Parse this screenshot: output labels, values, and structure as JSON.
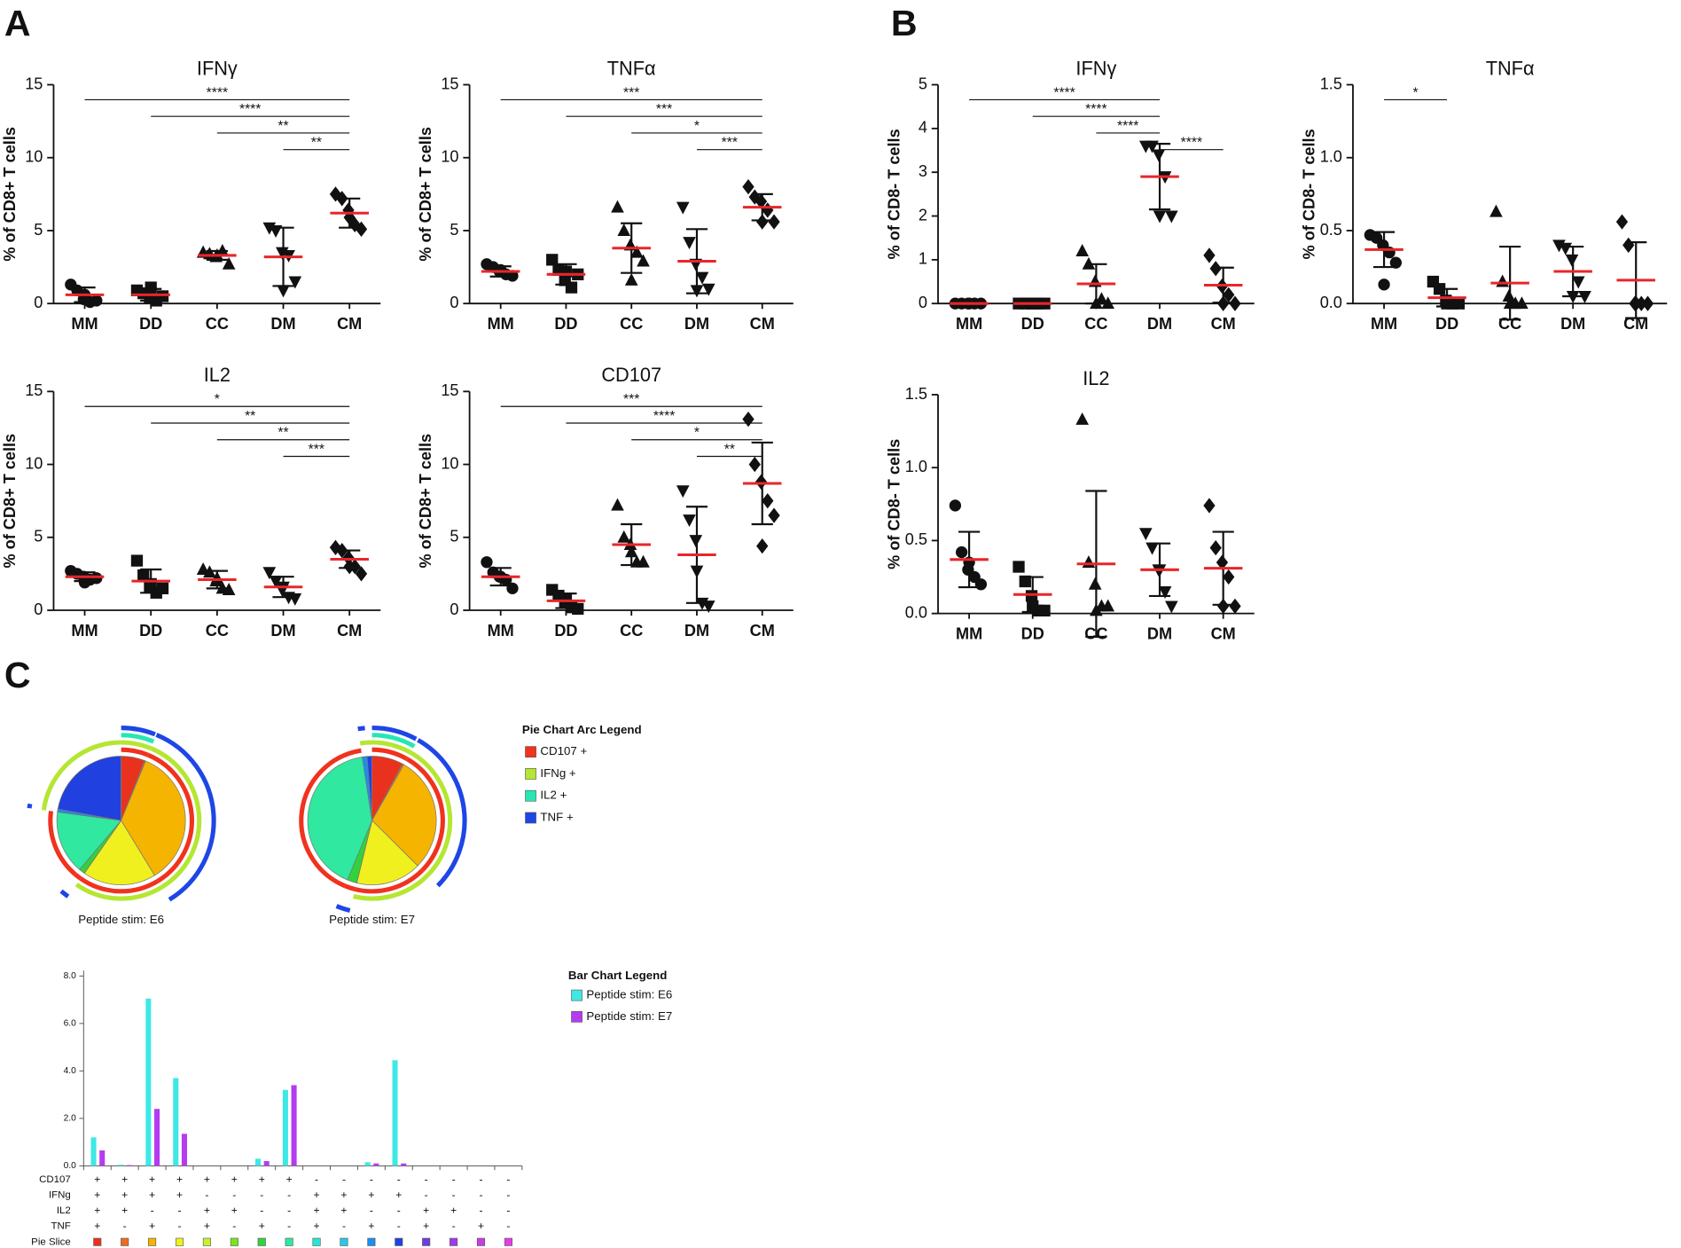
{
  "panel_labels": [
    "A",
    "B",
    "C"
  ],
  "chart_data": [
    {
      "type": "dot",
      "title": "IFNγ",
      "ylabel": "% of CD8+ T cells",
      "categories": [
        "MM",
        "DD",
        "CC",
        "DM",
        "CM"
      ],
      "markers": [
        "circle",
        "square",
        "triangle-up",
        "triangle-down",
        "diamond"
      ],
      "mean_color": "#e8262a",
      "points": [
        [
          1.3,
          0.9,
          0.3,
          0.1,
          0.2,
          0.6
        ],
        [
          0.9,
          0.7,
          0.4,
          0.2,
          0.5,
          1.1
        ],
        [
          3.5,
          3.4,
          3.2,
          3.6,
          2.7,
          3.3
        ],
        [
          5.2,
          5.0,
          3.5,
          3.3,
          1.5,
          0.9
        ],
        [
          7.5,
          7.2,
          6.4,
          5.4,
          5.1,
          5.9
        ]
      ],
      "means": [
        0.6,
        0.6,
        3.3,
        3.2,
        6.2
      ],
      "sds": [
        0.5,
        0.4,
        0.3,
        2.0,
        1.0
      ],
      "ylim": [
        0,
        15
      ],
      "yticks": [
        0,
        5,
        10,
        15
      ],
      "annotations": [
        {
          "label": "****",
          "span": [
            "MM",
            "CM"
          ]
        },
        {
          "label": "****",
          "span": [
            "DD",
            "CM"
          ]
        },
        {
          "label": "**",
          "span": [
            "CC",
            "CM"
          ]
        },
        {
          "label": "**",
          "span": [
            "DM",
            "CM"
          ]
        }
      ]
    },
    {
      "type": "dot",
      "title": "TNFα",
      "ylabel": "% of CD8+ T cells",
      "categories": [
        "MM",
        "DD",
        "CC",
        "DM",
        "CM"
      ],
      "markers": [
        "circle",
        "square",
        "triangle-up",
        "triangle-down",
        "diamond"
      ],
      "mean_color": "#e8262a",
      "points": [
        [
          2.7,
          2.5,
          2.2,
          2.0,
          1.9,
          2.3
        ],
        [
          3.0,
          2.3,
          1.6,
          1.1,
          2.0,
          2.2
        ],
        [
          6.6,
          5.0,
          4.0,
          3.5,
          2.9,
          1.6
        ],
        [
          6.6,
          4.2,
          2.7,
          1.8,
          1.0,
          0.9
        ],
        [
          8.0,
          7.3,
          7.0,
          6.4,
          5.6,
          5.6
        ]
      ],
      "means": [
        2.2,
        2.0,
        3.8,
        2.9,
        6.6
      ],
      "sds": [
        0.35,
        0.7,
        1.7,
        2.2,
        0.9
      ],
      "ylim": [
        0,
        15
      ],
      "yticks": [
        0,
        5,
        10,
        15
      ],
      "annotations": [
        {
          "label": "***",
          "span": [
            "MM",
            "CM"
          ]
        },
        {
          "label": "***",
          "span": [
            "DD",
            "CM"
          ]
        },
        {
          "label": "*",
          "span": [
            "CC",
            "CM"
          ]
        },
        {
          "label": "***",
          "span": [
            "DM",
            "CM"
          ]
        }
      ]
    },
    {
      "type": "dot",
      "title": "IL2",
      "ylabel": "% of CD8+ T cells",
      "categories": [
        "MM",
        "DD",
        "CC",
        "DM",
        "CM"
      ],
      "markers": [
        "circle",
        "square",
        "triangle-up",
        "triangle-down",
        "diamond"
      ],
      "mean_color": "#e8262a",
      "points": [
        [
          2.7,
          2.5,
          2.3,
          2.1,
          2.2,
          1.9
        ],
        [
          3.4,
          2.4,
          1.6,
          1.2,
          1.5,
          1.8
        ],
        [
          2.8,
          2.6,
          2.0,
          1.5,
          1.4,
          2.2
        ],
        [
          2.6,
          2.0,
          1.4,
          0.9,
          0.8,
          1.6
        ],
        [
          4.3,
          4.1,
          3.6,
          3.0,
          2.5,
          3.0
        ]
      ],
      "means": [
        2.3,
        2.0,
        2.1,
        1.6,
        3.5
      ],
      "sds": [
        0.3,
        0.8,
        0.6,
        0.7,
        0.6
      ],
      "ylim": [
        0,
        15
      ],
      "yticks": [
        0,
        5,
        10,
        15
      ],
      "annotations": [
        {
          "label": "*",
          "span": [
            "MM",
            "CM"
          ]
        },
        {
          "label": "**",
          "span": [
            "DD",
            "CM"
          ]
        },
        {
          "label": "**",
          "span": [
            "CC",
            "CM"
          ]
        },
        {
          "label": "***",
          "span": [
            "DM",
            "CM"
          ]
        }
      ]
    },
    {
      "type": "dot",
      "title": "CD107",
      "ylabel": "% of CD8+ T cells",
      "categories": [
        "MM",
        "DD",
        "CC",
        "DM",
        "CM"
      ],
      "markers": [
        "circle",
        "square",
        "triangle-up",
        "triangle-down",
        "diamond"
      ],
      "mean_color": "#e8262a",
      "points": [
        [
          3.3,
          2.6,
          2.3,
          2.1,
          1.5,
          2.3
        ],
        [
          1.4,
          1.0,
          0.5,
          0.2,
          0.1,
          0.8
        ],
        [
          7.2,
          5.0,
          4.5,
          3.3,
          3.3,
          4.0
        ],
        [
          8.2,
          6.2,
          4.8,
          0.5,
          0.3,
          2.7
        ],
        [
          13.1,
          10.0,
          8.8,
          7.5,
          6.5,
          4.4
        ]
      ],
      "means": [
        2.3,
        0.65,
        4.5,
        3.8,
        8.7
      ],
      "sds": [
        0.6,
        0.5,
        1.4,
        3.3,
        2.8
      ],
      "ylim": [
        0,
        15
      ],
      "yticks": [
        0,
        5,
        10,
        15
      ],
      "annotations": [
        {
          "label": "***",
          "span": [
            "MM",
            "CM"
          ]
        },
        {
          "label": "****",
          "span": [
            "DD",
            "CM"
          ]
        },
        {
          "label": "*",
          "span": [
            "CC",
            "CM"
          ]
        },
        {
          "label": "**",
          "span": [
            "DM",
            "CM"
          ]
        }
      ]
    },
    {
      "type": "dot",
      "title": "IFNγ",
      "ylabel": "% of CD8- T cells",
      "categories": [
        "MM",
        "DD",
        "CC",
        "DM",
        "CM"
      ],
      "markers": [
        "circle",
        "square",
        "triangle-up",
        "triangle-down",
        "diamond"
      ],
      "mean_color": "#e8262a",
      "points": [
        [
          0,
          0,
          0,
          0,
          0,
          0
        ],
        [
          0,
          0,
          0,
          0,
          0,
          0
        ],
        [
          1.2,
          0.9,
          0.5,
          0.1,
          0,
          0
        ],
        [
          3.6,
          3.6,
          3.4,
          2.9,
          2.0,
          2.0
        ],
        [
          1.1,
          0.8,
          0.4,
          0.2,
          0,
          0
        ]
      ],
      "means": [
        0,
        0,
        0.45,
        2.9,
        0.42
      ],
      "sds": [
        0,
        0,
        0.45,
        0.75,
        0.4
      ],
      "ylim": [
        0,
        5
      ],
      "yticks": [
        0,
        1,
        2,
        3,
        4,
        5
      ],
      "annotations": [
        {
          "label": "****",
          "span": [
            "MM",
            "DM"
          ]
        },
        {
          "label": "****",
          "span": [
            "DD",
            "DM"
          ]
        },
        {
          "label": "****",
          "span": [
            "CC",
            "DM"
          ]
        },
        {
          "label": "****",
          "span": [
            "DM",
            "CM"
          ]
        }
      ]
    },
    {
      "type": "dot",
      "title": "TNFα",
      "ylabel": "% of CD8- T cells",
      "categories": [
        "MM",
        "DD",
        "CC",
        "DM",
        "CM"
      ],
      "markers": [
        "circle",
        "square",
        "triangle-up",
        "triangle-down",
        "diamond"
      ],
      "mean_color": "#e8262a",
      "points": [
        [
          0.47,
          0.45,
          0.4,
          0.35,
          0.28,
          0.13
        ],
        [
          0.15,
          0.1,
          0.02,
          0,
          0,
          0
        ],
        [
          0.63,
          0.15,
          0.05,
          0,
          0,
          0
        ],
        [
          0.4,
          0.38,
          0.3,
          0.15,
          0.05,
          0.05
        ],
        [
          0.56,
          0.4,
          0,
          0,
          0,
          0
        ]
      ],
      "means": [
        0.37,
        0.04,
        0.14,
        0.22,
        0.16
      ],
      "sds": [
        0.12,
        0.06,
        0.25,
        0.17,
        0.26
      ],
      "ylim": [
        0,
        1.5
      ],
      "yticks": [
        {
          "value": 0,
          "label": "0.0"
        },
        0.5,
        {
          "value": 1,
          "label": "1.0"
        },
        1.5
      ],
      "annotations": [
        {
          "label": "*",
          "span": [
            "MM",
            "DD"
          ]
        }
      ]
    },
    {
      "type": "dot",
      "title": "IL2",
      "ylabel": "% of CD8- T cells",
      "categories": [
        "MM",
        "DD",
        "CC",
        "DM",
        "CM"
      ],
      "markers": [
        "circle",
        "square",
        "triangle-up",
        "triangle-down",
        "diamond"
      ],
      "mean_color": "#e8262a",
      "points": [
        [
          0.74,
          0.42,
          0.3,
          0.25,
          0.2,
          0.35
        ],
        [
          0.32,
          0.22,
          0.12,
          0.02,
          0.02,
          0.05
        ],
        [
          1.33,
          0.35,
          0.2,
          0.05,
          0.05,
          0.02
        ],
        [
          0.55,
          0.45,
          0.3,
          0.15,
          0.05,
          0.3
        ],
        [
          0.74,
          0.45,
          0.35,
          0.25,
          0.05,
          0.05
        ]
      ],
      "means": [
        0.37,
        0.13,
        0.34,
        0.3,
        0.31
      ],
      "sds": [
        0.19,
        0.12,
        0.5,
        0.18,
        0.25
      ],
      "ylim": [
        0,
        1.5
      ],
      "yticks": [
        {
          "value": 0,
          "label": "0.0"
        },
        0.5,
        {
          "value": 1,
          "label": "1.0"
        },
        1.5
      ],
      "annotations": []
    },
    {
      "type": "spice",
      "series": [
        {
          "name": "Peptide stim: E6",
          "color": "#3ee8e6",
          "values": [
            1.2,
            0.05,
            7.05,
            3.7,
            0,
            0,
            0.3,
            3.2,
            0,
            0,
            0.15,
            4.45,
            0,
            0,
            0,
            0
          ]
        },
        {
          "name": "Peptide stim: E7",
          "color": "#b43cf0",
          "values": [
            0.65,
            0.03,
            2.4,
            1.35,
            0,
            0,
            0.2,
            3.4,
            0,
            0,
            0.1,
            0.1,
            0,
            0,
            0,
            0
          ]
        }
      ],
      "markers": [
        {
          "name": "CD107",
          "legend": "CD107 +",
          "color": "#f0321e",
          "signs": [
            "+",
            "+",
            "+",
            "+",
            "+",
            "+",
            "+",
            "+",
            "-",
            "-",
            "-",
            "-",
            "-",
            "-",
            "-",
            "-"
          ]
        },
        {
          "name": "IFNg",
          "legend": "IFNg +",
          "color": "#b4e632",
          "signs": [
            "+",
            "+",
            "+",
            "+",
            "-",
            "-",
            "-",
            "-",
            "+",
            "+",
            "+",
            "+",
            "-",
            "-",
            "-",
            "-"
          ]
        },
        {
          "name": "IL2",
          "legend": "IL2 +",
          "color": "#28e6b4",
          "signs": [
            "+",
            "+",
            "-",
            "-",
            "+",
            "+",
            "-",
            "-",
            "+",
            "+",
            "-",
            "-",
            "+",
            "+",
            "-",
            "-"
          ]
        },
        {
          "name": "TNF",
          "legend": "TNF +",
          "color": "#1e46e6",
          "signs": [
            "+",
            "-",
            "+",
            "-",
            "+",
            "-",
            "+",
            "-",
            "+",
            "-",
            "+",
            "-",
            "+",
            "-",
            "+",
            "-"
          ]
        }
      ],
      "slice_label": "Pie Slice",
      "slice_colors": [
        "#e8321e",
        "#f06a1e",
        "#f5b400",
        "#f0f01e",
        "#c8f032",
        "#78e61e",
        "#32d23c",
        "#30e8a0",
        "#28e6d2",
        "#28c8e6",
        "#1e8cf0",
        "#2040e0",
        "#6e3cdc",
        "#a03ce6",
        "#c83ce6",
        "#e63ce6"
      ],
      "pie_legend_title": "Pie Chart Arc Legend",
      "bar_legend_title": "Bar Chart Legend",
      "ylim": [
        0,
        8
      ],
      "yticks": [
        {
          "value": 0,
          "label": "0.0"
        },
        {
          "value": 2,
          "label": "2.0"
        },
        {
          "value": 4,
          "label": "4.0"
        },
        {
          "value": 6,
          "label": "6.0"
        },
        {
          "value": 8,
          "label": "8.0"
        }
      ]
    }
  ]
}
